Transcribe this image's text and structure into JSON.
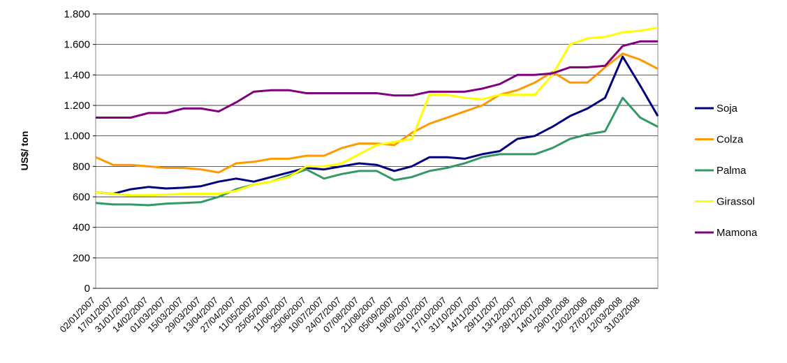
{
  "chart_data": {
    "type": "line",
    "y_label": "US$/ ton",
    "categories": [
      "02/01/2007",
      "17/01/2007",
      "31/01/2007",
      "14/02/2007",
      "01/03/2007",
      "15/03/2007",
      "29/03/2007",
      "13/04/2007",
      "27/04/2007",
      "11/05/2007",
      "25/05/2007",
      "11/06/2007",
      "25/06/2007",
      "10/07/2007",
      "24/07/2007",
      "07/08/2007",
      "21/08/2007",
      "05/09/2007",
      "19/09/2007",
      "03/10/2007",
      "17/10/2007",
      "31/10/2007",
      "14/11/2007",
      "29/11/2007",
      "13/12/2007",
      "28/12/2007",
      "14/01/2008",
      "29/01/2008",
      "12/02/2008",
      "27/02/2008",
      "12/03/2008",
      "31/03/2008",
      null
    ],
    "series": [
      {
        "name": "Soja",
        "color": "#000080",
        "values": [
          630,
          620,
          650,
          665,
          655,
          660,
          670,
          700,
          720,
          700,
          730,
          760,
          790,
          780,
          800,
          820,
          810,
          770,
          800,
          860,
          860,
          850,
          880,
          900,
          980,
          1000,
          1060,
          1130,
          1180,
          1250,
          1520,
          1330,
          1130
        ]
      },
      {
        "name": "Colza",
        "color": "#ff9900",
        "values": [
          860,
          810,
          810,
          800,
          790,
          790,
          780,
          760,
          820,
          830,
          850,
          850,
          870,
          870,
          920,
          950,
          950,
          940,
          1020,
          1080,
          1120,
          1160,
          1200,
          1270,
          1300,
          1350,
          1420,
          1350,
          1350,
          1450,
          1540,
          1500,
          1440
        ]
      },
      {
        "name": "Palma",
        "color": "#339966",
        "values": [
          560,
          550,
          550,
          545,
          555,
          560,
          565,
          600,
          650,
          680,
          700,
          740,
          780,
          720,
          750,
          770,
          770,
          710,
          730,
          770,
          790,
          820,
          860,
          880,
          880,
          880,
          920,
          980,
          1010,
          1030,
          1250,
          1120,
          1060
        ]
      },
      {
        "name": "Girassol",
        "color": "#ffff00",
        "values": [
          630,
          620,
          610,
          610,
          615,
          620,
          620,
          620,
          640,
          680,
          700,
          730,
          800,
          800,
          820,
          880,
          940,
          960,
          980,
          1270,
          1270,
          1250,
          1240,
          1270,
          1270,
          1270,
          1400,
          1600,
          1640,
          1650,
          1680,
          1690,
          1710
        ]
      },
      {
        "name": "Mamona",
        "color": "#800080",
        "values": [
          1120,
          1120,
          1120,
          1150,
          1150,
          1180,
          1180,
          1160,
          1220,
          1290,
          1300,
          1300,
          1280,
          1280,
          1280,
          1280,
          1280,
          1265,
          1265,
          1290,
          1290,
          1290,
          1310,
          1340,
          1400,
          1400,
          1410,
          1450,
          1450,
          1460,
          1590,
          1620,
          1620
        ]
      }
    ],
    "ylim": [
      0,
      1800
    ],
    "yticks": [
      0,
      200,
      400,
      600,
      800,
      {
        "value": 1000,
        "label": "1.000"
      },
      {
        "value": 1200,
        "label": "1.200"
      },
      {
        "value": 1400,
        "label": "1.400"
      },
      {
        "value": 1600,
        "label": "1.600"
      },
      {
        "value": 1800,
        "label": "1.800"
      }
    ],
    "grid": true,
    "legend": "right"
  }
}
